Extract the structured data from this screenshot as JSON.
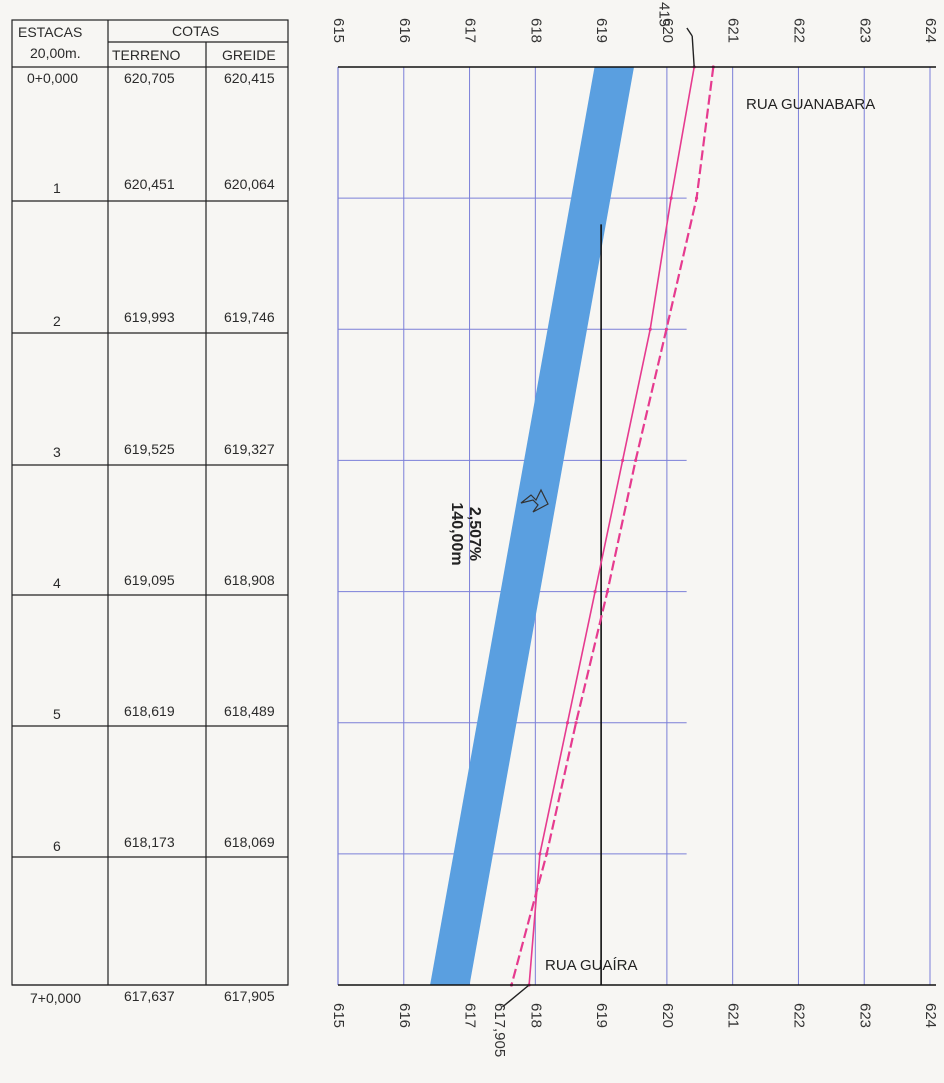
{
  "table": {
    "header": {
      "estacas": "ESTACAS",
      "estacas_sub": "20,00m.",
      "cotas": "COTAS",
      "terreno": "TERRENO",
      "greide": "GREIDE"
    },
    "rows": [
      {
        "estaca": "0+0,000",
        "terreno": "620,705",
        "greide": "620,415"
      },
      {
        "estaca": "1",
        "terreno": "620,451",
        "greide": "620,064"
      },
      {
        "estaca": "2",
        "terreno": "619,993",
        "greide": "619,746"
      },
      {
        "estaca": "3",
        "terreno": "619,525",
        "greide": "619,327"
      },
      {
        "estaca": "4",
        "terreno": "619,095",
        "greide": "618,908"
      },
      {
        "estaca": "5",
        "terreno": "618,619",
        "greide": "618,489"
      },
      {
        "estaca": "6",
        "terreno": "618,173",
        "greide": "618,069"
      },
      {
        "estaca": "7+0,000",
        "terreno": "617,637",
        "greide": "617,905"
      }
    ]
  },
  "chart_data": {
    "type": "line",
    "x_ticks": [
      615,
      616,
      617,
      618,
      619,
      620,
      621,
      622,
      623,
      624
    ],
    "x_tick_labels": [
      "615",
      "616",
      "617",
      "618",
      "619",
      "620",
      "621",
      "622",
      "623",
      "624"
    ],
    "xlim": [
      615,
      624
    ],
    "stations": [
      0,
      1,
      2,
      3,
      4,
      5,
      6,
      7
    ],
    "series": [
      {
        "role": "terreno",
        "color": "#e63b8f",
        "style": "dashed",
        "values": [
          620.705,
          620.451,
          619.993,
          619.525,
          619.095,
          618.619,
          618.173,
          617.637
        ]
      },
      {
        "role": "greide",
        "color": "#e63b8f",
        "style": "solid",
        "values": [
          620.415,
          620.064,
          619.746,
          619.327,
          618.908,
          618.489,
          618.069,
          617.905
        ]
      }
    ],
    "band": {
      "color": "#5a9fe0",
      "start": [
        618.9,
        619.5
      ],
      "end": [
        616.4,
        617.0
      ]
    },
    "ref_line": {
      "x": 619,
      "from_station": 1.2,
      "to_station": 7
    },
    "annotations": {
      "slope": "2,507%",
      "length": "140,00m",
      "street_top": "RUA GUANABARA",
      "street_bottom": "RUA GUAÍRA",
      "top_callout": "415",
      "bottom_callout": "617,905"
    },
    "colors": {
      "grid": "#7b7fd8",
      "axis": "#111111"
    }
  }
}
